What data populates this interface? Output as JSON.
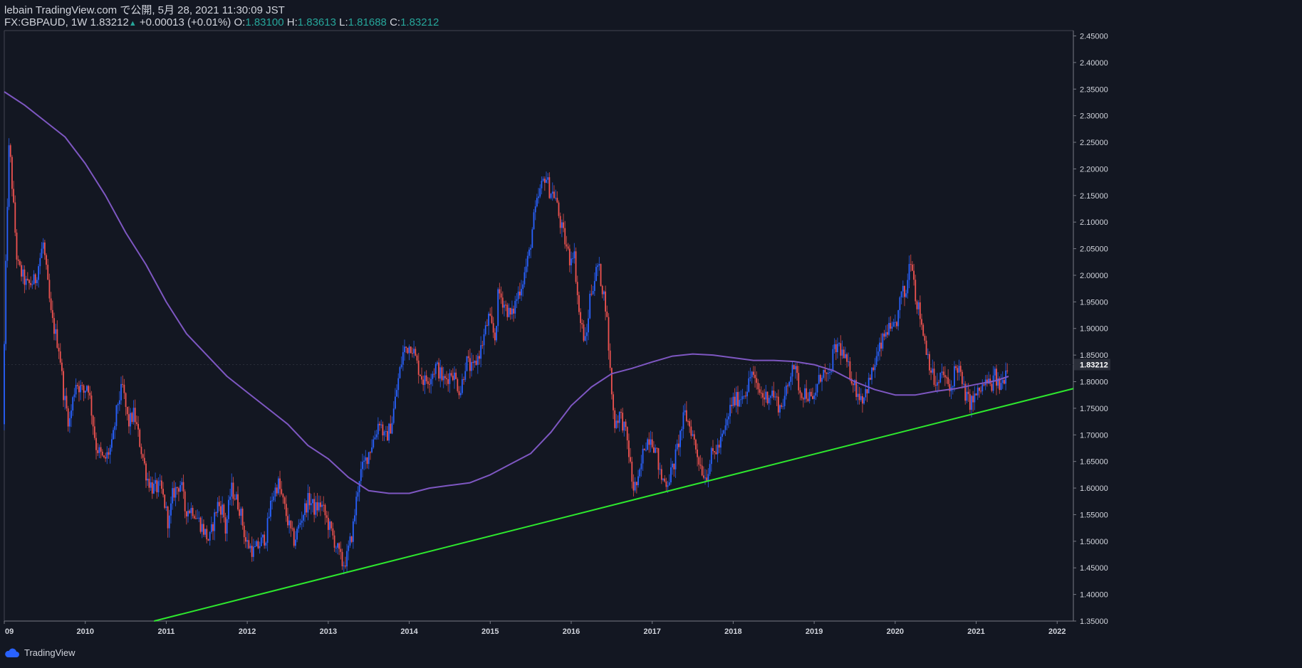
{
  "header": {
    "published": "lebain TradingView.com で公開, 5月 28, 2021 11:30:09 JST",
    "symbol_interval": "FX:GBPAUD, 1W",
    "last": "1.83212",
    "change": "+0.00013 (+0.01%)",
    "o_label": "O:",
    "o_value": "1.83100",
    "h_label": "H:",
    "h_value": "1.83613",
    "l_label": "L:",
    "l_value": "1.81688",
    "c_label": "C:",
    "c_value": "1.83212"
  },
  "footer": {
    "brand": "TradingView"
  },
  "colors": {
    "background": "#131722",
    "up": "#2962ff",
    "down": "#ef5350",
    "ma": "#7e57c2",
    "trendline": "#2ee82e",
    "text": "#d1d4dc",
    "accent": "#26a69a"
  },
  "chart_data": {
    "type": "candlestick",
    "symbol": "FX:GBPAUD",
    "interval": "1W",
    "x_tick_labels": [
      "09",
      "2010",
      "2011",
      "2012",
      "2013",
      "2014",
      "2015",
      "2016",
      "2017",
      "2018",
      "2019",
      "2020",
      "2021",
      "2022"
    ],
    "y_tick_labels": [
      "2.45000",
      "2.40000",
      "2.35000",
      "2.30000",
      "2.25000",
      "2.20000",
      "2.15000",
      "2.10000",
      "2.05000",
      "2.00000",
      "1.95000",
      "1.90000",
      "1.85000",
      "1.80000",
      "1.75000",
      "1.70000",
      "1.65000",
      "1.60000",
      "1.55000",
      "1.50000",
      "1.45000",
      "1.40000",
      "1.35000"
    ],
    "ylim": [
      1.35,
      2.46
    ],
    "xlim": [
      2009.0,
      2022.2
    ],
    "last_price_label": "1.83212",
    "last_price": 1.83212,
    "price_path": [
      [
        2009.0,
        1.72
      ],
      [
        2009.05,
        2.1
      ],
      [
        2009.08,
        2.25
      ],
      [
        2009.12,
        2.16
      ],
      [
        2009.18,
        2.02
      ],
      [
        2009.3,
        1.98
      ],
      [
        2009.4,
        1.99
      ],
      [
        2009.5,
        2.06
      ],
      [
        2009.6,
        1.92
      ],
      [
        2009.7,
        1.86
      ],
      [
        2009.75,
        1.78
      ],
      [
        2009.82,
        1.72
      ],
      [
        2009.9,
        1.8
      ],
      [
        2010.0,
        1.78
      ],
      [
        2010.05,
        1.8
      ],
      [
        2010.1,
        1.74
      ],
      [
        2010.15,
        1.68
      ],
      [
        2010.25,
        1.65
      ],
      [
        2010.35,
        1.68
      ],
      [
        2010.42,
        1.76
      ],
      [
        2010.48,
        1.79
      ],
      [
        2010.55,
        1.72
      ],
      [
        2010.62,
        1.74
      ],
      [
        2010.7,
        1.68
      ],
      [
        2010.78,
        1.62
      ],
      [
        2010.85,
        1.6
      ],
      [
        2010.95,
        1.6
      ],
      [
        2011.0,
        1.57
      ],
      [
        2011.05,
        1.53
      ],
      [
        2011.1,
        1.59
      ],
      [
        2011.2,
        1.61
      ],
      [
        2011.25,
        1.56
      ],
      [
        2011.35,
        1.56
      ],
      [
        2011.45,
        1.53
      ],
      [
        2011.55,
        1.5
      ],
      [
        2011.65,
        1.57
      ],
      [
        2011.72,
        1.56
      ],
      [
        2011.75,
        1.52
      ],
      [
        2011.82,
        1.6
      ],
      [
        2011.88,
        1.58
      ],
      [
        2011.93,
        1.56
      ],
      [
        2012.0,
        1.5
      ],
      [
        2012.1,
        1.48
      ],
      [
        2012.15,
        1.49
      ],
      [
        2012.25,
        1.51
      ],
      [
        2012.32,
        1.58
      ],
      [
        2012.4,
        1.61
      ],
      [
        2012.45,
        1.58
      ],
      [
        2012.55,
        1.52
      ],
      [
        2012.6,
        1.5
      ],
      [
        2012.7,
        1.55
      ],
      [
        2012.78,
        1.58
      ],
      [
        2012.85,
        1.56
      ],
      [
        2012.93,
        1.57
      ],
      [
        2013.0,
        1.54
      ],
      [
        2013.05,
        1.52
      ],
      [
        2013.12,
        1.49
      ],
      [
        2013.2,
        1.455
      ],
      [
        2013.25,
        1.47
      ],
      [
        2013.32,
        1.52
      ],
      [
        2013.4,
        1.62
      ],
      [
        2013.5,
        1.66
      ],
      [
        2013.6,
        1.7
      ],
      [
        2013.65,
        1.73
      ],
      [
        2013.72,
        1.69
      ],
      [
        2013.8,
        1.72
      ],
      [
        2013.88,
        1.8
      ],
      [
        2013.95,
        1.86
      ],
      [
        2014.05,
        1.87
      ],
      [
        2014.12,
        1.83
      ],
      [
        2014.2,
        1.8
      ],
      [
        2014.28,
        1.81
      ],
      [
        2014.35,
        1.83
      ],
      [
        2014.45,
        1.8
      ],
      [
        2014.55,
        1.82
      ],
      [
        2014.65,
        1.78
      ],
      [
        2014.72,
        1.84
      ],
      [
        2014.8,
        1.82
      ],
      [
        2014.9,
        1.86
      ],
      [
        2015.0,
        1.92
      ],
      [
        2015.08,
        1.88
      ],
      [
        2015.12,
        1.97
      ],
      [
        2015.18,
        1.95
      ],
      [
        2015.28,
        1.92
      ],
      [
        2015.35,
        1.96
      ],
      [
        2015.42,
        1.99
      ],
      [
        2015.5,
        2.04
      ],
      [
        2015.55,
        2.1
      ],
      [
        2015.62,
        2.15
      ],
      [
        2015.7,
        2.19
      ],
      [
        2015.75,
        2.16
      ],
      [
        2015.82,
        2.15
      ],
      [
        2015.88,
        2.1
      ],
      [
        2015.95,
        2.06
      ],
      [
        2016.0,
        2.03
      ],
      [
        2016.05,
        2.05
      ],
      [
        2016.12,
        1.92
      ],
      [
        2016.2,
        1.87
      ],
      [
        2016.25,
        1.96
      ],
      [
        2016.35,
        2.02
      ],
      [
        2016.4,
        1.98
      ],
      [
        2016.45,
        1.94
      ],
      [
        2016.5,
        1.82
      ],
      [
        2016.55,
        1.72
      ],
      [
        2016.62,
        1.74
      ],
      [
        2016.68,
        1.71
      ],
      [
        2016.72,
        1.68
      ],
      [
        2016.78,
        1.6
      ],
      [
        2016.85,
        1.61
      ],
      [
        2016.92,
        1.68
      ],
      [
        2017.0,
        1.7
      ],
      [
        2017.08,
        1.66
      ],
      [
        2017.12,
        1.62
      ],
      [
        2017.2,
        1.61
      ],
      [
        2017.28,
        1.64
      ],
      [
        2017.35,
        1.69
      ],
      [
        2017.42,
        1.74
      ],
      [
        2017.5,
        1.71
      ],
      [
        2017.55,
        1.68
      ],
      [
        2017.62,
        1.64
      ],
      [
        2017.68,
        1.62
      ],
      [
        2017.75,
        1.66
      ],
      [
        2017.85,
        1.68
      ],
      [
        2017.92,
        1.71
      ],
      [
        2018.0,
        1.76
      ],
      [
        2018.1,
        1.77
      ],
      [
        2018.2,
        1.79
      ],
      [
        2018.25,
        1.82
      ],
      [
        2018.3,
        1.79
      ],
      [
        2018.4,
        1.77
      ],
      [
        2018.5,
        1.78
      ],
      [
        2018.6,
        1.75
      ],
      [
        2018.7,
        1.79
      ],
      [
        2018.75,
        1.84
      ],
      [
        2018.8,
        1.81
      ],
      [
        2018.85,
        1.78
      ],
      [
        2018.92,
        1.78
      ],
      [
        2019.0,
        1.76
      ],
      [
        2019.05,
        1.79
      ],
      [
        2019.12,
        1.82
      ],
      [
        2019.2,
        1.8
      ],
      [
        2019.25,
        1.85
      ],
      [
        2019.32,
        1.87
      ],
      [
        2019.4,
        1.84
      ],
      [
        2019.48,
        1.81
      ],
      [
        2019.55,
        1.78
      ],
      [
        2019.62,
        1.77
      ],
      [
        2019.7,
        1.8
      ],
      [
        2019.78,
        1.84
      ],
      [
        2019.85,
        1.87
      ],
      [
        2019.92,
        1.9
      ],
      [
        2019.98,
        1.89
      ],
      [
        2020.05,
        1.92
      ],
      [
        2020.1,
        1.97
      ],
      [
        2020.15,
        1.96
      ],
      [
        2020.18,
        2.01
      ],
      [
        2020.22,
        2.04
      ],
      [
        2020.27,
        1.96
      ],
      [
        2020.32,
        1.93
      ],
      [
        2020.38,
        1.88
      ],
      [
        2020.45,
        1.83
      ],
      [
        2020.5,
        1.8
      ],
      [
        2020.55,
        1.79
      ],
      [
        2020.6,
        1.82
      ],
      [
        2020.65,
        1.8
      ],
      [
        2020.7,
        1.78
      ],
      [
        2020.75,
        1.82
      ],
      [
        2020.8,
        1.83
      ],
      [
        2020.85,
        1.79
      ],
      [
        2020.9,
        1.77
      ],
      [
        2020.95,
        1.76
      ],
      [
        2021.0,
        1.77
      ],
      [
        2021.05,
        1.78
      ],
      [
        2021.1,
        1.79
      ],
      [
        2021.15,
        1.8
      ],
      [
        2021.2,
        1.79
      ],
      [
        2021.25,
        1.81
      ],
      [
        2021.3,
        1.79
      ],
      [
        2021.35,
        1.8
      ],
      [
        2021.4,
        1.832
      ]
    ],
    "ma_path": [
      [
        2009.0,
        2.345
      ],
      [
        2009.25,
        2.32
      ],
      [
        2009.5,
        2.29
      ],
      [
        2009.75,
        2.26
      ],
      [
        2010.0,
        2.21
      ],
      [
        2010.25,
        2.15
      ],
      [
        2010.5,
        2.08
      ],
      [
        2010.75,
        2.02
      ],
      [
        2011.0,
        1.95
      ],
      [
        2011.25,
        1.89
      ],
      [
        2011.5,
        1.85
      ],
      [
        2011.75,
        1.81
      ],
      [
        2012.0,
        1.78
      ],
      [
        2012.25,
        1.75
      ],
      [
        2012.5,
        1.72
      ],
      [
        2012.75,
        1.68
      ],
      [
        2013.0,
        1.655
      ],
      [
        2013.25,
        1.62
      ],
      [
        2013.5,
        1.595
      ],
      [
        2013.75,
        1.59
      ],
      [
        2014.0,
        1.59
      ],
      [
        2014.25,
        1.6
      ],
      [
        2014.5,
        1.605
      ],
      [
        2014.75,
        1.61
      ],
      [
        2015.0,
        1.625
      ],
      [
        2015.25,
        1.645
      ],
      [
        2015.5,
        1.665
      ],
      [
        2015.75,
        1.705
      ],
      [
        2016.0,
        1.755
      ],
      [
        2016.25,
        1.79
      ],
      [
        2016.5,
        1.815
      ],
      [
        2016.75,
        1.825
      ],
      [
        2017.0,
        1.837
      ],
      [
        2017.25,
        1.848
      ],
      [
        2017.5,
        1.852
      ],
      [
        2017.75,
        1.85
      ],
      [
        2018.0,
        1.845
      ],
      [
        2018.25,
        1.84
      ],
      [
        2018.5,
        1.84
      ],
      [
        2018.75,
        1.838
      ],
      [
        2019.0,
        1.832
      ],
      [
        2019.25,
        1.82
      ],
      [
        2019.5,
        1.8
      ],
      [
        2019.75,
        1.785
      ],
      [
        2020.0,
        1.775
      ],
      [
        2020.25,
        1.775
      ],
      [
        2020.5,
        1.782
      ],
      [
        2020.75,
        1.787
      ],
      [
        2021.0,
        1.795
      ],
      [
        2021.25,
        1.802
      ],
      [
        2021.4,
        1.81
      ]
    ],
    "trendline": {
      "x": [
        2010.85,
        2022.2
      ],
      "y": [
        1.35,
        1.787
      ]
    }
  }
}
